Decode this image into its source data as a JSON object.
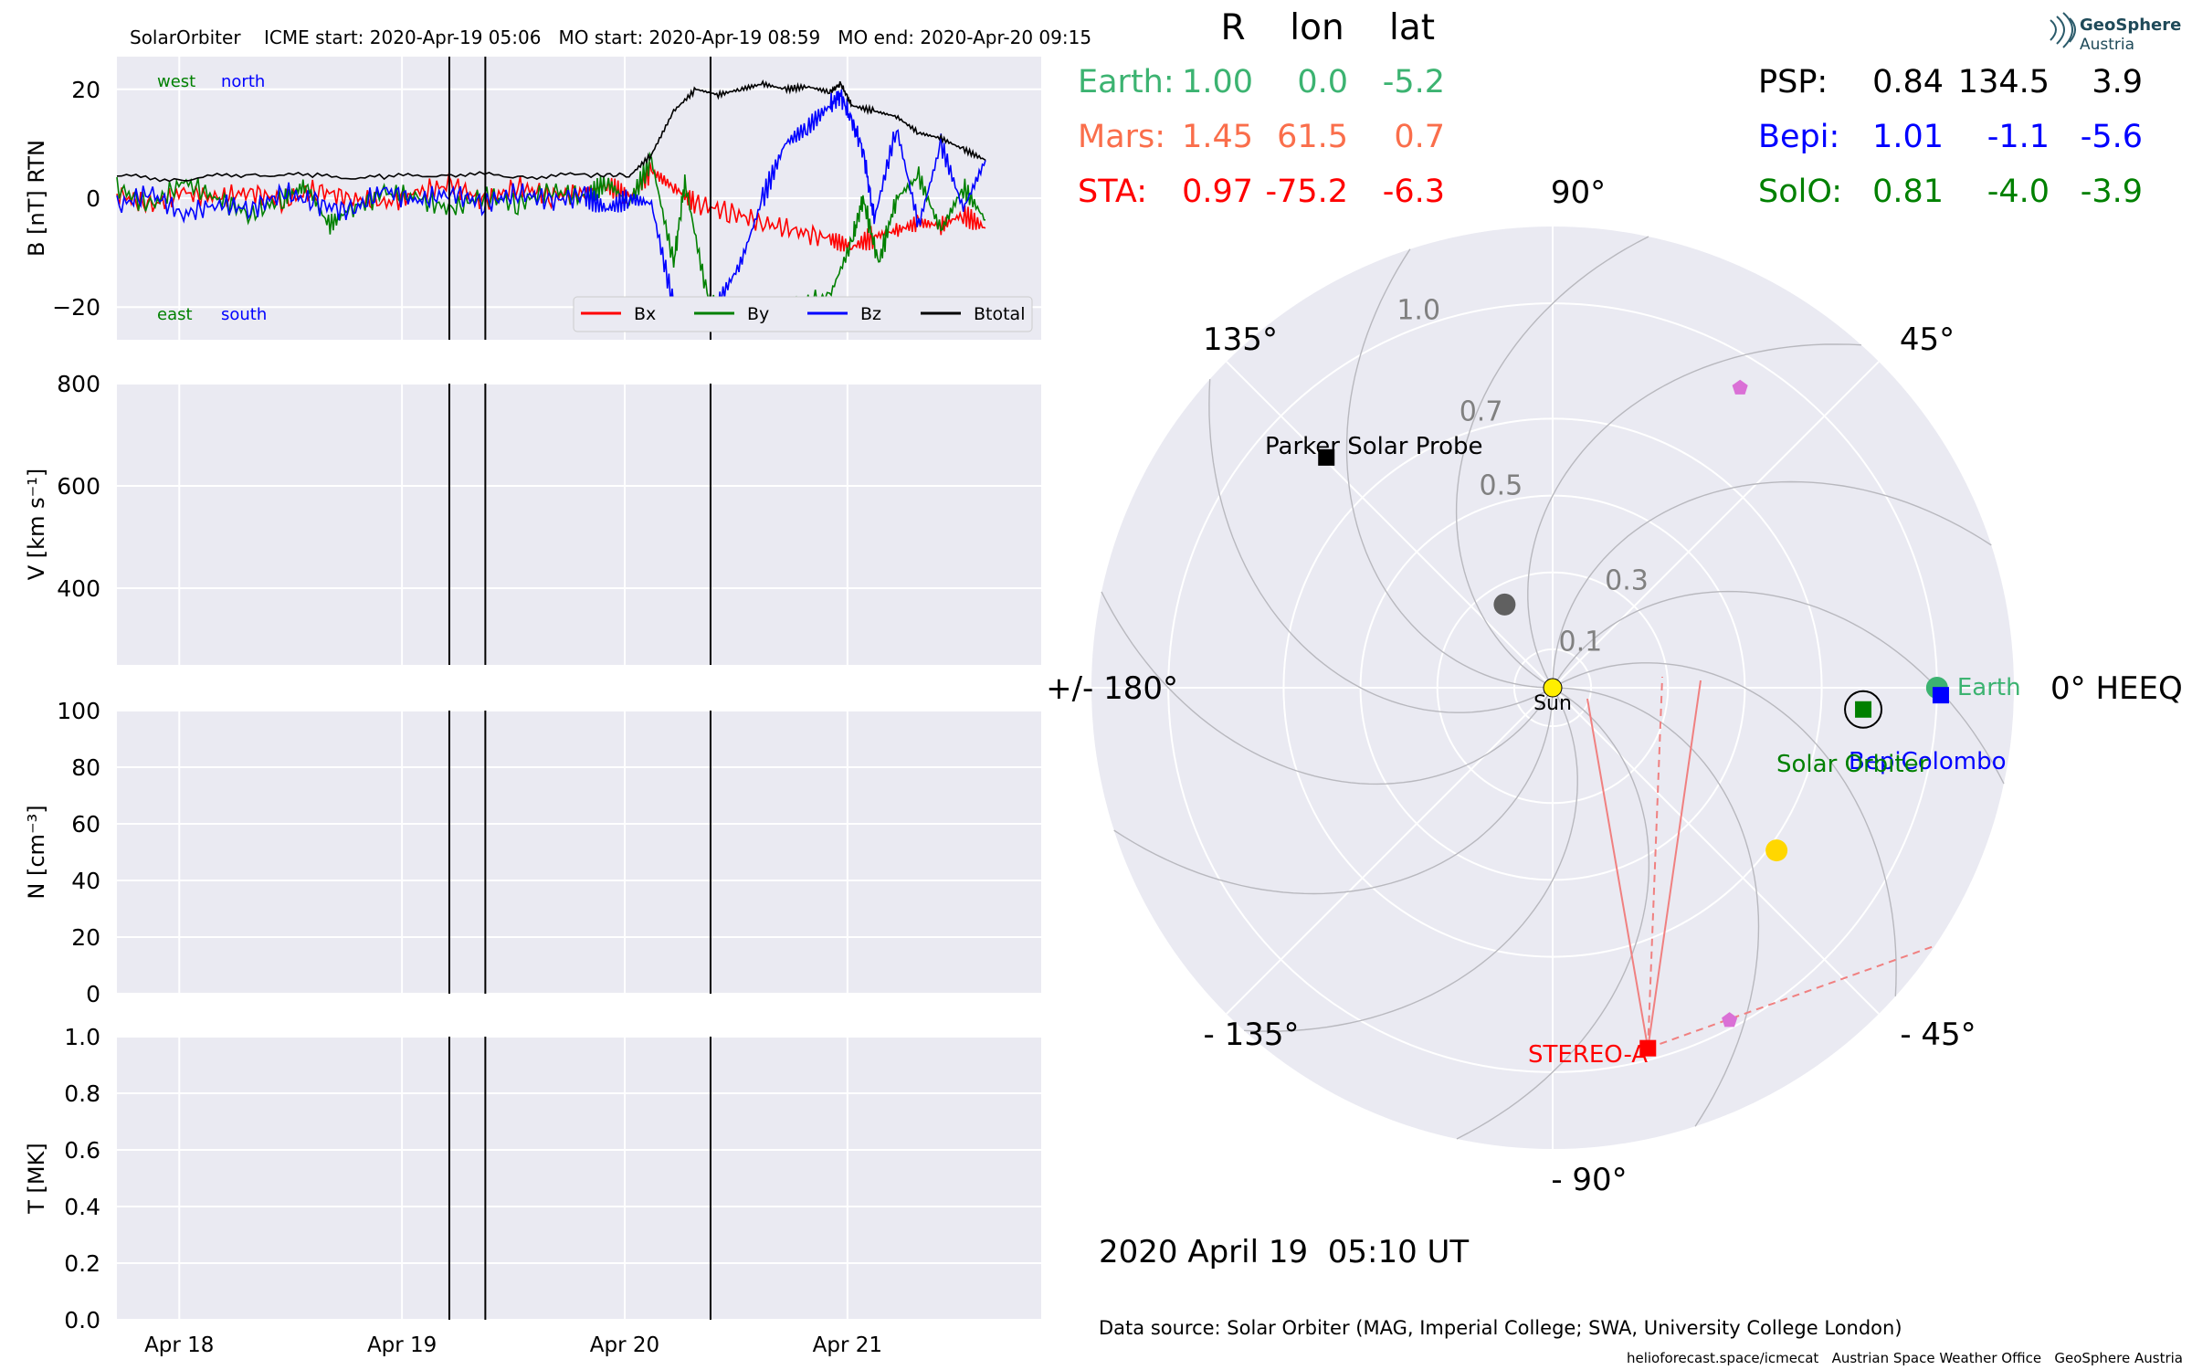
{
  "panel_title": "SolarOrbiter    ICME start: 2020-Apr-19 05:06   MO start: 2020-Apr-19 08:59   MO end: 2020-Apr-20 09:15",
  "timestamp": "2020 April 19  05:10 UT",
  "data_source": "Data source: Solar Orbiter (MAG, Imperial College; SWA, University College London)",
  "credits": "helioforecast.space/icmecat   Austrian Space Weather Office   GeoSphere Austria",
  "logo": {
    "line1": "GeoSphere",
    "line2": "Austria"
  },
  "colors": {
    "bx": "#ff0000",
    "by": "#008000",
    "bz": "#0000ff",
    "btotal": "#000000",
    "earth": "#3cb371",
    "mars": "#fa6e4b",
    "sta": "#ff0000",
    "psp": "#000000",
    "bepi": "#0000ff",
    "solo": "#008000",
    "panel_bg": "#eaeaf2"
  },
  "table": {
    "headers": [
      "R",
      "lon",
      "lat"
    ],
    "left_rows": [
      {
        "name": "Earth:",
        "r": "1.00",
        "lon": "0.0",
        "lat": "-5.2",
        "color": "#3cb371"
      },
      {
        "name": "Mars:",
        "r": "1.45",
        "lon": "61.5",
        "lat": "0.7",
        "color": "#fa6e4b"
      },
      {
        "name": "STA:",
        "r": "0.97",
        "lon": "-75.2",
        "lat": "-6.3",
        "color": "#ff0000"
      }
    ],
    "right_rows": [
      {
        "name": "PSP:",
        "r": "0.84",
        "lon": "134.5",
        "lat": "3.9",
        "color": "#000000"
      },
      {
        "name": "Bepi:",
        "r": "1.01",
        "lon": "-1.1",
        "lat": "-5.6",
        "color": "#0000ff"
      },
      {
        "name": "SolO:",
        "r": "0.81",
        "lon": "-4.0",
        "lat": "-3.9",
        "color": "#008000"
      }
    ]
  },
  "chart_data": [
    {
      "type": "line",
      "panel": "magnetic_field",
      "ylabel": "B [nT] RTN",
      "ylim": [
        -26,
        26
      ],
      "yticks": [
        20,
        0,
        -20
      ],
      "ytick_labels": [
        "20",
        "0",
        "−20"
      ],
      "corner_labels": {
        "west": "west",
        "north": "north",
        "east": "east",
        "south": "south"
      },
      "x_days_label_note": "",
      "series": [
        {
          "name": "Bx",
          "points": [
            [
              0,
              0.8
            ],
            [
              0.15,
              -1.5
            ],
            [
              0.3,
              1
            ],
            [
              0.45,
              0
            ],
            [
              0.6,
              1.2
            ],
            [
              0.75,
              -0.5
            ],
            [
              0.9,
              1.5
            ],
            [
              1.05,
              0
            ],
            [
              1.2,
              -1
            ],
            [
              1.35,
              1
            ],
            [
              1.5,
              2.5
            ],
            [
              1.65,
              -0.5
            ],
            [
              1.8,
              2
            ],
            [
              1.95,
              0.5
            ],
            [
              2.1,
              1
            ],
            [
              2.2,
              2.5
            ],
            [
              2.3,
              0
            ],
            [
              2.4,
              5
            ],
            [
              2.5,
              2
            ],
            [
              2.6,
              -1
            ],
            [
              2.75,
              -2.5
            ],
            [
              2.9,
              -4.5
            ],
            [
              3.05,
              -6
            ],
            [
              3.2,
              -7.5
            ],
            [
              3.3,
              -9
            ],
            [
              3.4,
              -7
            ],
            [
              3.5,
              -6
            ],
            [
              3.6,
              -4.5
            ],
            [
              3.7,
              -5
            ],
            [
              3.8,
              -3
            ],
            [
              3.9,
              -5.5
            ]
          ]
        },
        {
          "name": "By",
          "points": [
            [
              0,
              2
            ],
            [
              0.15,
              -1.5
            ],
            [
              0.3,
              3
            ],
            [
              0.45,
              0
            ],
            [
              0.6,
              -3
            ],
            [
              0.75,
              0
            ],
            [
              0.85,
              2.5
            ],
            [
              0.95,
              -5
            ],
            [
              1.05,
              -2
            ],
            [
              1.2,
              1
            ],
            [
              1.35,
              0
            ],
            [
              1.5,
              -2
            ],
            [
              1.65,
              0.5
            ],
            [
              1.8,
              -1
            ],
            [
              1.95,
              1.5
            ],
            [
              2.1,
              0
            ],
            [
              2.2,
              3
            ],
            [
              2.3,
              -1
            ],
            [
              2.4,
              7
            ],
            [
              2.5,
              -12
            ],
            [
              2.55,
              3
            ],
            [
              2.65,
              -18
            ],
            [
              2.75,
              -20
            ],
            [
              2.9,
              -22
            ],
            [
              3.05,
              -20
            ],
            [
              3.2,
              -18
            ],
            [
              3.3,
              -8
            ],
            [
              3.35,
              0
            ],
            [
              3.42,
              -12
            ],
            [
              3.5,
              0
            ],
            [
              3.6,
              4
            ],
            [
              3.7,
              -6
            ],
            [
              3.8,
              2
            ],
            [
              3.9,
              -4
            ]
          ]
        },
        {
          "name": "Bz",
          "points": [
            [
              0,
              -1.5
            ],
            [
              0.15,
              1
            ],
            [
              0.3,
              -3
            ],
            [
              0.45,
              -1
            ],
            [
              0.6,
              -2
            ],
            [
              0.75,
              1
            ],
            [
              0.9,
              -1
            ],
            [
              1.05,
              -2.5
            ],
            [
              1.2,
              1.5
            ],
            [
              1.35,
              -0.5
            ],
            [
              1.5,
              1
            ],
            [
              1.65,
              -1
            ],
            [
              1.8,
              1
            ],
            [
              1.95,
              -0.5
            ],
            [
              2.1,
              0.5
            ],
            [
              2.2,
              -2
            ],
            [
              2.3,
              0
            ],
            [
              2.4,
              -1
            ],
            [
              2.5,
              -20
            ],
            [
              2.6,
              -22
            ],
            [
              2.7,
              -19
            ],
            [
              2.8,
              -12
            ],
            [
              2.9,
              0
            ],
            [
              3.0,
              10
            ],
            [
              3.1,
              13
            ],
            [
              3.2,
              17
            ],
            [
              3.25,
              19
            ],
            [
              3.3,
              14
            ],
            [
              3.35,
              9
            ],
            [
              3.4,
              -4
            ],
            [
              3.5,
              13
            ],
            [
              3.6,
              -5
            ],
            [
              3.7,
              10
            ],
            [
              3.8,
              -2
            ],
            [
              3.9,
              7
            ]
          ]
        },
        {
          "name": "Btotal",
          "points": [
            [
              0,
              4
            ],
            [
              0.3,
              3.5
            ],
            [
              0.6,
              4.5
            ],
            [
              0.9,
              4
            ],
            [
              1.2,
              3.8
            ],
            [
              1.5,
              4.5
            ],
            [
              1.8,
              4
            ],
            [
              2.1,
              4.2
            ],
            [
              2.3,
              4
            ],
            [
              2.4,
              8
            ],
            [
              2.5,
              16
            ],
            [
              2.6,
              20
            ],
            [
              2.7,
              19
            ],
            [
              2.8,
              20
            ],
            [
              2.9,
              21
            ],
            [
              3.0,
              20
            ],
            [
              3.1,
              20.5
            ],
            [
              3.2,
              19.5
            ],
            [
              3.25,
              21
            ],
            [
              3.3,
              17
            ],
            [
              3.4,
              16
            ],
            [
              3.5,
              15
            ],
            [
              3.6,
              12
            ],
            [
              3.7,
              11
            ],
            [
              3.8,
              9
            ],
            [
              3.9,
              7
            ]
          ]
        }
      ]
    },
    {
      "type": "line",
      "panel": "velocity",
      "ylabel": "V [km s⁻¹]",
      "ylim": [
        250,
        800
      ],
      "yticks": [
        800,
        600,
        400
      ],
      "ytick_labels": [
        "800",
        "600",
        "400"
      ],
      "series": []
    },
    {
      "type": "line",
      "panel": "density",
      "ylabel": "N [cm⁻³]",
      "ylim": [
        0,
        100
      ],
      "yticks": [
        100,
        80,
        60,
        40,
        20,
        0
      ],
      "ytick_labels": [
        "100",
        "80",
        "60",
        "40",
        "20",
        "0"
      ],
      "series": []
    },
    {
      "type": "line",
      "panel": "temperature",
      "ylabel": "T [MK]",
      "ylim": [
        0,
        1
      ],
      "yticks": [
        1.0,
        0.8,
        0.6,
        0.4,
        0.2,
        0.0
      ],
      "ytick_labels": [
        "1.0",
        "0.8",
        "0.6",
        "0.4",
        "0.2",
        "0.0"
      ],
      "series": []
    },
    {
      "type": "scatter",
      "panel": "polar_positions",
      "r_ticks": [
        0.1,
        0.3,
        0.5,
        0.7,
        1.0
      ],
      "r_tick_labels": [
        "0.1",
        "0.3",
        "0.5",
        "0.7",
        "1.0"
      ],
      "angle_labels": {
        "a0": "0° HEEQ",
        "a45": "45°",
        "a90": "90°",
        "a135": "135°",
        "a180": "+/- 180°",
        "am135": "- 135°",
        "am90": "- 90°",
        "am45": "- 45°"
      },
      "bodies": [
        {
          "label": "Earth",
          "r": 1.0,
          "lon": 0.0,
          "marker": "circle",
          "color": "#3cb371"
        },
        {
          "label": "BepiColombo",
          "r": 1.01,
          "lon": -1.1,
          "marker": "square",
          "color": "#0000ff"
        },
        {
          "label": "Solar Orbiter",
          "r": 0.81,
          "lon": -4.0,
          "marker": "square",
          "color": "#008000"
        },
        {
          "label": "STEREO-A",
          "r": 0.97,
          "lon": -75.2,
          "marker": "square",
          "color": "#ff0000"
        },
        {
          "label": "Parker Solar Probe",
          "r": 0.84,
          "lon": 134.5,
          "marker": "square",
          "color": "#000000"
        },
        {
          "label": "Sun",
          "r": 0.0,
          "lon": 0.0,
          "marker": "circle",
          "color": "#ffee00"
        }
      ],
      "unlabeled_markers": [
        {
          "r": 0.25,
          "lon": 120,
          "marker": "circle",
          "color": "#606060"
        },
        {
          "r": 0.72,
          "lon": -36,
          "marker": "circle",
          "color": "#ffd700"
        },
        {
          "r": 0.92,
          "lon": 58,
          "marker": "pentagon",
          "color": "#da70d6"
        },
        {
          "r": 0.98,
          "lon": -62,
          "marker": "pentagon",
          "color": "#da70d6"
        }
      ]
    }
  ]
}
